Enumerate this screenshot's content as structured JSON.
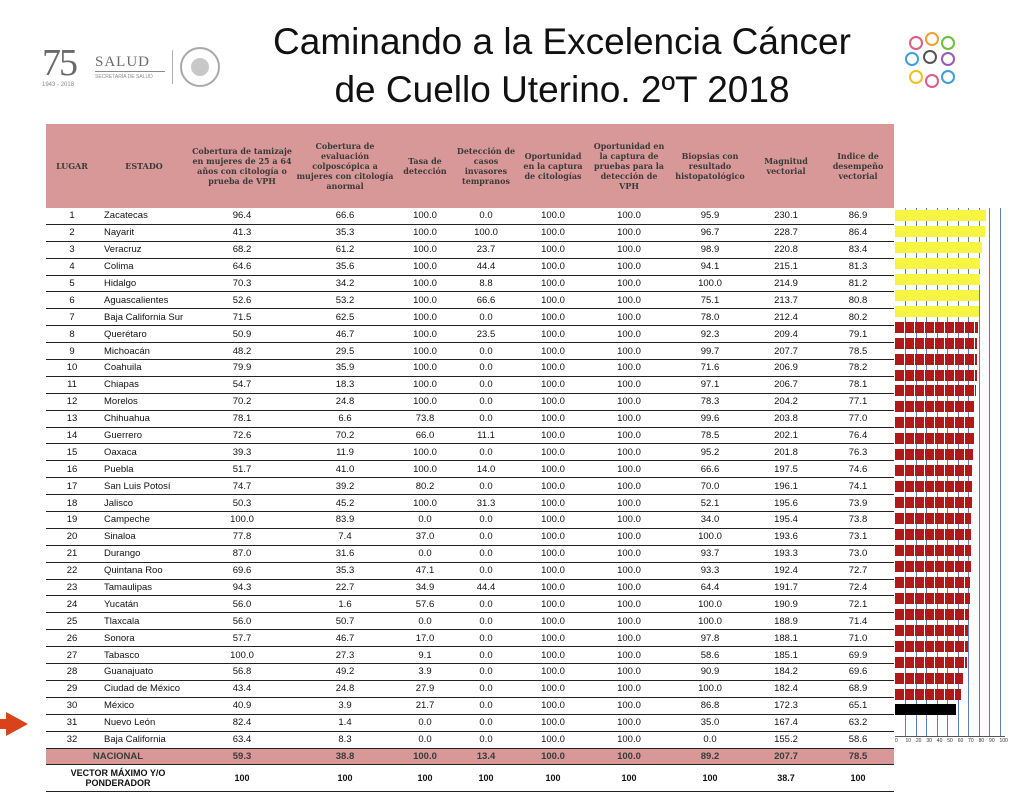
{
  "title_line1": "Caminando a la Excelencia Cáncer",
  "title_line2": "de Cuello Uterino. 2ºT 2018",
  "logos": {
    "anniversary": "75",
    "anniversary_years": "1943 - 2018",
    "brand": "SALUD",
    "brand_sub": "SECRETARÍA DE SALUD"
  },
  "headers": [
    "LUGAR",
    "ESTADO",
    "Cobertura de tamizaje en mujeres de 25 a 64 años con citología o prueba de VPH",
    "Cobertura de evaluación colposcópica a mujeres con citología anormal",
    "Tasa de detección",
    "Detección de casos invasores tempranos",
    "Oportunidad en la captura de citologías",
    "Oportunidad en la captura de pruebas para la detección de VPH",
    "Biopsias con resultado histopatológico",
    "Magnitud vectorial",
    "Indice de desempeño vectorial"
  ],
  "rows": [
    [
      "1",
      "Zacatecas",
      "96.4",
      "66.6",
      "100.0",
      "0.0",
      "100.0",
      "100.0",
      "95.9",
      "230.1",
      "86.9"
    ],
    [
      "2",
      "Nayarit",
      "41.3",
      "35.3",
      "100.0",
      "100.0",
      "100.0",
      "100.0",
      "96.7",
      "228.7",
      "86.4"
    ],
    [
      "3",
      "Veracruz",
      "68.2",
      "61.2",
      "100.0",
      "23.7",
      "100.0",
      "100.0",
      "98.9",
      "220.8",
      "83.4"
    ],
    [
      "4",
      "Colima",
      "64.6",
      "35.6",
      "100.0",
      "44.4",
      "100.0",
      "100.0",
      "94.1",
      "215.1",
      "81.3"
    ],
    [
      "5",
      "Hidalgo",
      "70.3",
      "34.2",
      "100.0",
      "8.8",
      "100.0",
      "100.0",
      "100.0",
      "214.9",
      "81.2"
    ],
    [
      "6",
      "Aguascalientes",
      "52.6",
      "53.2",
      "100.0",
      "66.6",
      "100.0",
      "100.0",
      "75.1",
      "213.7",
      "80.8"
    ],
    [
      "7",
      "Baja California Sur",
      "71.5",
      "62.5",
      "100.0",
      "0.0",
      "100.0",
      "100.0",
      "78.0",
      "212.4",
      "80.2"
    ],
    [
      "8",
      "Querétaro",
      "50.9",
      "46.7",
      "100.0",
      "23.5",
      "100.0",
      "100.0",
      "92.3",
      "209.4",
      "79.1"
    ],
    [
      "9",
      "Michoacán",
      "48.2",
      "29.5",
      "100.0",
      "0.0",
      "100.0",
      "100.0",
      "99.7",
      "207.7",
      "78.5"
    ],
    [
      "10",
      "Coahuila",
      "79.9",
      "35.9",
      "100.0",
      "0.0",
      "100.0",
      "100.0",
      "71.6",
      "206.9",
      "78.2"
    ],
    [
      "11",
      "Chiapas",
      "54.7",
      "18.3",
      "100.0",
      "0.0",
      "100.0",
      "100.0",
      "97.1",
      "206.7",
      "78.1"
    ],
    [
      "12",
      "Morelos",
      "70.2",
      "24.8",
      "100.0",
      "0.0",
      "100.0",
      "100.0",
      "78.3",
      "204.2",
      "77.1"
    ],
    [
      "13",
      "Chihuahua",
      "78.1",
      "6.6",
      "73.8",
      "0.0",
      "100.0",
      "100.0",
      "99.6",
      "203.8",
      "77.0"
    ],
    [
      "14",
      "Guerrero",
      "72.6",
      "70.2",
      "66.0",
      "11.1",
      "100.0",
      "100.0",
      "78.5",
      "202.1",
      "76.4"
    ],
    [
      "15",
      "Oaxaca",
      "39.3",
      "11.9",
      "100.0",
      "0.0",
      "100.0",
      "100.0",
      "95.2",
      "201.8",
      "76.3"
    ],
    [
      "16",
      "Puebla",
      "51.7",
      "41.0",
      "100.0",
      "14.0",
      "100.0",
      "100.0",
      "66.6",
      "197.5",
      "74.6"
    ],
    [
      "17",
      "San Luis Potosí",
      "74.7",
      "39.2",
      "80.2",
      "0.0",
      "100.0",
      "100.0",
      "70.0",
      "196.1",
      "74.1"
    ],
    [
      "18",
      "Jalisco",
      "50.3",
      "45.2",
      "100.0",
      "31.3",
      "100.0",
      "100.0",
      "52.1",
      "195.6",
      "73.9"
    ],
    [
      "19",
      "Campeche",
      "100.0",
      "83.9",
      "0.0",
      "0.0",
      "100.0",
      "100.0",
      "34.0",
      "195.4",
      "73.8"
    ],
    [
      "20",
      "Sinaloa",
      "77.8",
      "7.4",
      "37.0",
      "0.0",
      "100.0",
      "100.0",
      "100.0",
      "193.6",
      "73.1"
    ],
    [
      "21",
      "Durango",
      "87.0",
      "31.6",
      "0.0",
      "0.0",
      "100.0",
      "100.0",
      "93.7",
      "193.3",
      "73.0"
    ],
    [
      "22",
      "Quintana Roo",
      "69.6",
      "35.3",
      "47.1",
      "0.0",
      "100.0",
      "100.0",
      "93.3",
      "192.4",
      "72.7"
    ],
    [
      "23",
      "Tamaulipas",
      "94.3",
      "22.7",
      "34.9",
      "44.4",
      "100.0",
      "100.0",
      "64.4",
      "191.7",
      "72.4"
    ],
    [
      "24",
      "Yucatán",
      "56.0",
      "1.6",
      "57.6",
      "0.0",
      "100.0",
      "100.0",
      "100.0",
      "190.9",
      "72.1"
    ],
    [
      "25",
      "Tlaxcala",
      "56.0",
      "50.7",
      "0.0",
      "0.0",
      "100.0",
      "100.0",
      "100.0",
      "188.9",
      "71.4"
    ],
    [
      "26",
      "Sonora",
      "57.7",
      "46.7",
      "17.0",
      "0.0",
      "100.0",
      "100.0",
      "97.8",
      "188.1",
      "71.0"
    ],
    [
      "27",
      "Tabasco",
      "100.0",
      "27.3",
      "9.1",
      "0.0",
      "100.0",
      "100.0",
      "58.6",
      "185.1",
      "69.9"
    ],
    [
      "28",
      "Guanajuato",
      "56.8",
      "49.2",
      "3.9",
      "0.0",
      "100.0",
      "100.0",
      "90.9",
      "184.2",
      "69.6"
    ],
    [
      "29",
      "Ciudad de México",
      "43.4",
      "24.8",
      "27.9",
      "0.0",
      "100.0",
      "100.0",
      "100.0",
      "182.4",
      "68.9"
    ],
    [
      "30",
      "México",
      "40.9",
      "3.9",
      "21.7",
      "0.0",
      "100.0",
      "100.0",
      "86.8",
      "172.3",
      "65.1"
    ],
    [
      "31",
      "Nuevo León",
      "82.4",
      "1.4",
      "0.0",
      "0.0",
      "100.0",
      "100.0",
      "35.0",
      "167.4",
      "63.2"
    ],
    [
      "32",
      "Baja California",
      "63.4",
      "8.3",
      "0.0",
      "0.0",
      "100.0",
      "100.0",
      "0.0",
      "155.2",
      "58.6"
    ]
  ],
  "nacional": [
    "NACIONAL",
    "59.3",
    "38.8",
    "100.0",
    "13.4",
    "100.0",
    "100.0",
    "89.2",
    "207.7",
    "78.5"
  ],
  "vector": [
    "VECTOR MÁXIMO Y/O PONDERADOR",
    "100",
    "100",
    "100",
    "100",
    "100",
    "100",
    "100",
    "38.7",
    "100"
  ],
  "bar_values": [
    86.9,
    86.4,
    83.4,
    81.3,
    81.2,
    80.8,
    80.2,
    79.1,
    78.5,
    78.2,
    78.1,
    77.1,
    77.0,
    76.4,
    76.3,
    74.6,
    74.1,
    73.9,
    73.8,
    73.1,
    73.0,
    72.7,
    72.4,
    72.1,
    71.4,
    71.0,
    69.9,
    69.6,
    68.9,
    65.1,
    63.2,
    58.6
  ],
  "bar_colors": {
    "top": "#f5f542",
    "mid": "#b01919",
    "last": "#000000"
  },
  "axis_ticks": [
    "0",
    "10",
    "20",
    "30",
    "40",
    "50",
    "60",
    "70",
    "80",
    "90",
    "100"
  ],
  "header_color": "#d89898"
}
